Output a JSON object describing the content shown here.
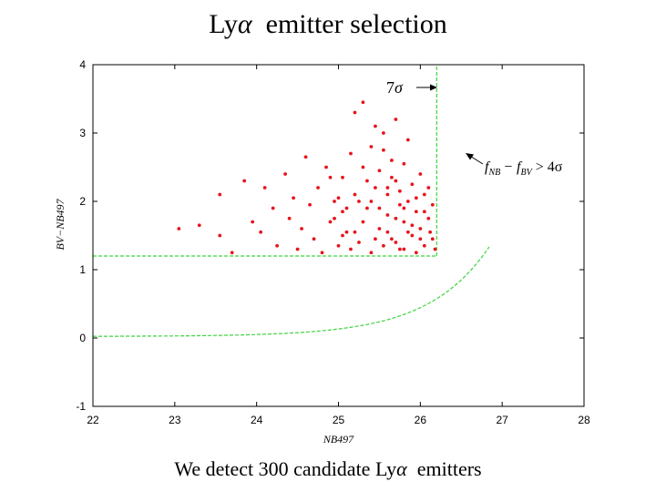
{
  "slide": {
    "title_prefix": "Ly",
    "title_symbol": "α",
    "title_suffix": "emitter selection",
    "caption_prefix": "We detect 300 candidate Ly",
    "caption_symbol": "α",
    "caption_suffix": "emitters"
  },
  "chart_data": {
    "type": "scatter",
    "xlabel": "NB497",
    "ylabel": "BV−NB497",
    "xlim": [
      22,
      28
    ],
    "ylim": [
      -1,
      4
    ],
    "xticks": [
      "22",
      "23",
      "24",
      "25",
      "26",
      "27",
      "28"
    ],
    "yticks": [
      "-1",
      "0",
      "1",
      "2",
      "3",
      "4"
    ],
    "grid": false,
    "colors": {
      "field": "#000000",
      "candidates": "#e8141c",
      "cuts": "#3dd43d"
    },
    "selection": {
      "color_cut": 1.2,
      "magnitude_limit_7sigma": 26.2,
      "n_candidates": 300
    },
    "annotations": {
      "sigma_label": "7",
      "sigma_symbol": "σ",
      "flux_label": "f",
      "flux_sub1": "NB",
      "flux_mid": "− f",
      "flux_sub2": "BV",
      "flux_end": "> 4σ"
    },
    "series": [
      {
        "name": "",
        "color": "#e8141c",
        "points": [
          [
            23.05,
            1.6
          ],
          [
            23.3,
            1.65
          ],
          [
            23.55,
            2.1
          ],
          [
            23.55,
            1.5
          ],
          [
            23.7,
            1.25
          ],
          [
            23.85,
            2.3
          ],
          [
            23.95,
            1.7
          ],
          [
            24.05,
            1.55
          ],
          [
            24.1,
            2.2
          ],
          [
            24.2,
            1.9
          ],
          [
            24.25,
            1.35
          ],
          [
            24.35,
            2.4
          ],
          [
            24.4,
            1.75
          ],
          [
            24.45,
            2.05
          ],
          [
            24.5,
            1.3
          ],
          [
            24.55,
            1.6
          ],
          [
            24.6,
            2.65
          ],
          [
            24.65,
            1.95
          ],
          [
            24.7,
            1.45
          ],
          [
            24.75,
            2.2
          ],
          [
            24.8,
            1.25
          ],
          [
            24.85,
            2.5
          ],
          [
            24.9,
            1.7
          ],
          [
            24.95,
            2.0
          ],
          [
            25.0,
            1.35
          ],
          [
            25.05,
            2.35
          ],
          [
            25.05,
            1.85
          ],
          [
            25.1,
            1.55
          ],
          [
            25.15,
            2.7
          ],
          [
            25.2,
            3.3
          ],
          [
            25.2,
            2.1
          ],
          [
            25.25,
            1.4
          ],
          [
            25.3,
            3.45
          ],
          [
            25.3,
            2.5
          ],
          [
            25.35,
            1.9
          ],
          [
            25.4,
            1.25
          ],
          [
            25.4,
            2.8
          ],
          [
            25.45,
            3.1
          ],
          [
            25.45,
            2.2
          ],
          [
            25.5,
            1.6
          ],
          [
            25.5,
            2.45
          ],
          [
            25.55,
            3.0
          ],
          [
            25.55,
            1.35
          ],
          [
            25.6,
            2.1
          ],
          [
            25.6,
            1.8
          ],
          [
            25.65,
            2.6
          ],
          [
            25.65,
            1.45
          ],
          [
            25.7,
            2.3
          ],
          [
            25.7,
            3.2
          ],
          [
            25.75,
            1.95
          ],
          [
            25.75,
            1.3
          ],
          [
            25.8,
            2.55
          ],
          [
            25.8,
            1.7
          ],
          [
            25.85,
            2.0
          ],
          [
            25.85,
            2.9
          ],
          [
            25.9,
            1.5
          ],
          [
            25.9,
            2.25
          ],
          [
            25.95,
            1.25
          ],
          [
            25.95,
            1.85
          ],
          [
            26.0,
            2.4
          ],
          [
            26.0,
            1.6
          ],
          [
            26.05,
            2.1
          ],
          [
            26.05,
            1.35
          ],
          [
            26.1,
            1.75
          ],
          [
            26.1,
            2.2
          ],
          [
            26.15,
            1.45
          ],
          [
            26.15,
            1.95
          ],
          [
            26.18,
            1.3
          ],
          [
            25.6,
            1.55
          ],
          [
            25.7,
            1.4
          ],
          [
            25.8,
            1.3
          ],
          [
            25.9,
            1.65
          ],
          [
            26.0,
            1.45
          ],
          [
            25.5,
            1.9
          ],
          [
            25.4,
            2.0
          ],
          [
            25.3,
            1.7
          ],
          [
            25.2,
            1.55
          ],
          [
            25.1,
            1.9
          ],
          [
            25.0,
            2.05
          ],
          [
            24.9,
            2.35
          ],
          [
            25.55,
            2.75
          ],
          [
            25.65,
            2.35
          ],
          [
            25.75,
            2.15
          ],
          [
            25.85,
            1.55
          ],
          [
            25.95,
            2.05
          ],
          [
            26.05,
            1.85
          ],
          [
            26.12,
            1.55
          ],
          [
            25.45,
            1.45
          ],
          [
            25.35,
            2.3
          ],
          [
            25.25,
            2.0
          ],
          [
            25.15,
            1.3
          ],
          [
            25.05,
            1.5
          ],
          [
            24.95,
            1.75
          ],
          [
            25.6,
            2.2
          ],
          [
            25.7,
            1.75
          ],
          [
            25.8,
            1.9
          ]
        ]
      }
    ]
  }
}
